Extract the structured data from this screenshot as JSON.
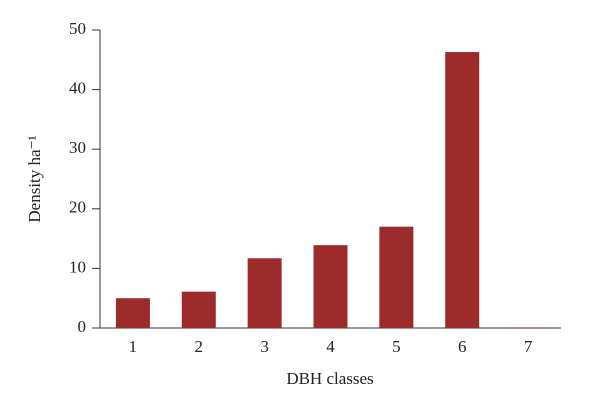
{
  "chart_data": {
    "type": "bar",
    "x_label": "DBH classes",
    "y_label": "Density ha⁻¹",
    "categories": [
      "1",
      "2",
      "3",
      "4",
      "5",
      "6",
      "7"
    ],
    "values": [
      5.0,
      6.1,
      11.7,
      13.9,
      17.0,
      46.3,
      0.1
    ],
    "color": "#9e2b2b",
    "ylim": [
      0,
      50
    ],
    "yticks": [
      0,
      10,
      20,
      30,
      40,
      50
    ],
    "grid": false
  }
}
